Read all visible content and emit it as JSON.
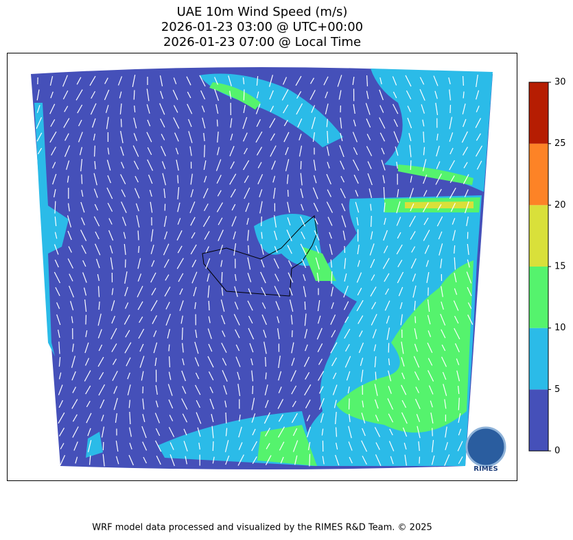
{
  "title": [
    "UAE 10m Wind Speed (m/s)",
    "2026-01-23 03:00 @ UTC+00:00",
    "2026-01-23 07:00 @ Local Time"
  ],
  "colorbar": {
    "ticks": [
      0,
      5,
      10,
      15,
      20,
      25,
      30
    ],
    "colors": [
      "#4550b9",
      "#2bbbe8",
      "#55f36d",
      "#d9e03a",
      "#fd8326",
      "#b61d02"
    ]
  },
  "logo": "RIMES",
  "footer": "WRF model data processed and visualized by the RIMES R&D Team. © 2025"
}
